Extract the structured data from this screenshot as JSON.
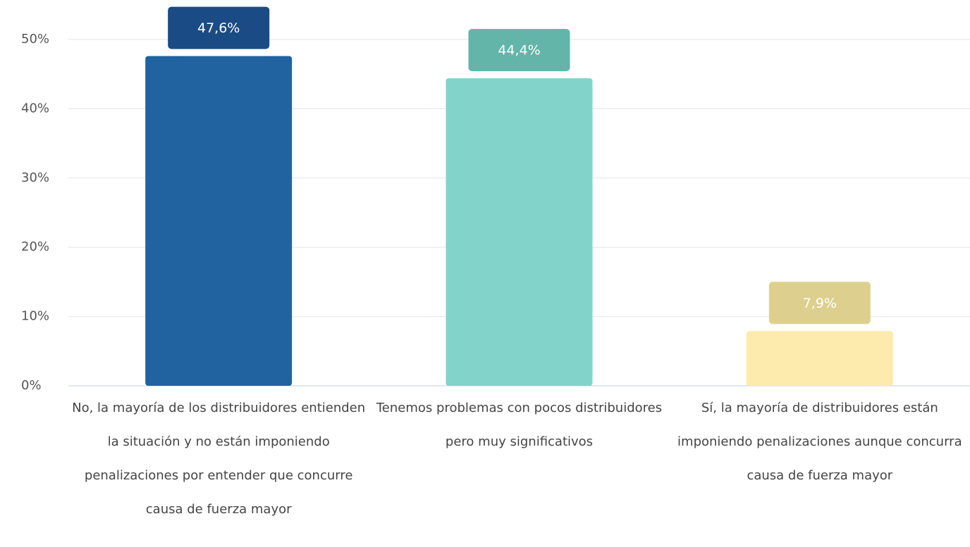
{
  "chart_data": {
    "type": "bar",
    "categories": [
      "No, la mayoría de los distribuidores entienden la situación y no están imponiendo penalizaciones por entender que concurre causa de fuerza mayor",
      "Tenemos problemas con pocos distribuidores pero muy significativos",
      "Sí, la mayoría de distribuidores están imponiendo penalizaciones aunque concurra causa de fuerza mayor"
    ],
    "values": [
      47.6,
      44.4,
      7.9
    ],
    "value_labels": [
      "47,6%",
      "44,4%",
      "7,9%"
    ],
    "colors": [
      "#2163a0",
      "#82d4cb",
      "#fdeaad"
    ],
    "label_colors": [
      "#1b4b84",
      "#63b4a9",
      "#ddd08e"
    ],
    "ylim": [
      0,
      50
    ],
    "yticks": [
      {
        "value": 0,
        "label": "0%"
      },
      {
        "value": 10,
        "label": "10%"
      },
      {
        "value": 20,
        "label": "20%"
      },
      {
        "value": 30,
        "label": "30%"
      },
      {
        "value": 40,
        "label": "40%"
      },
      {
        "value": 50,
        "label": "50%"
      }
    ],
    "grid": true
  }
}
